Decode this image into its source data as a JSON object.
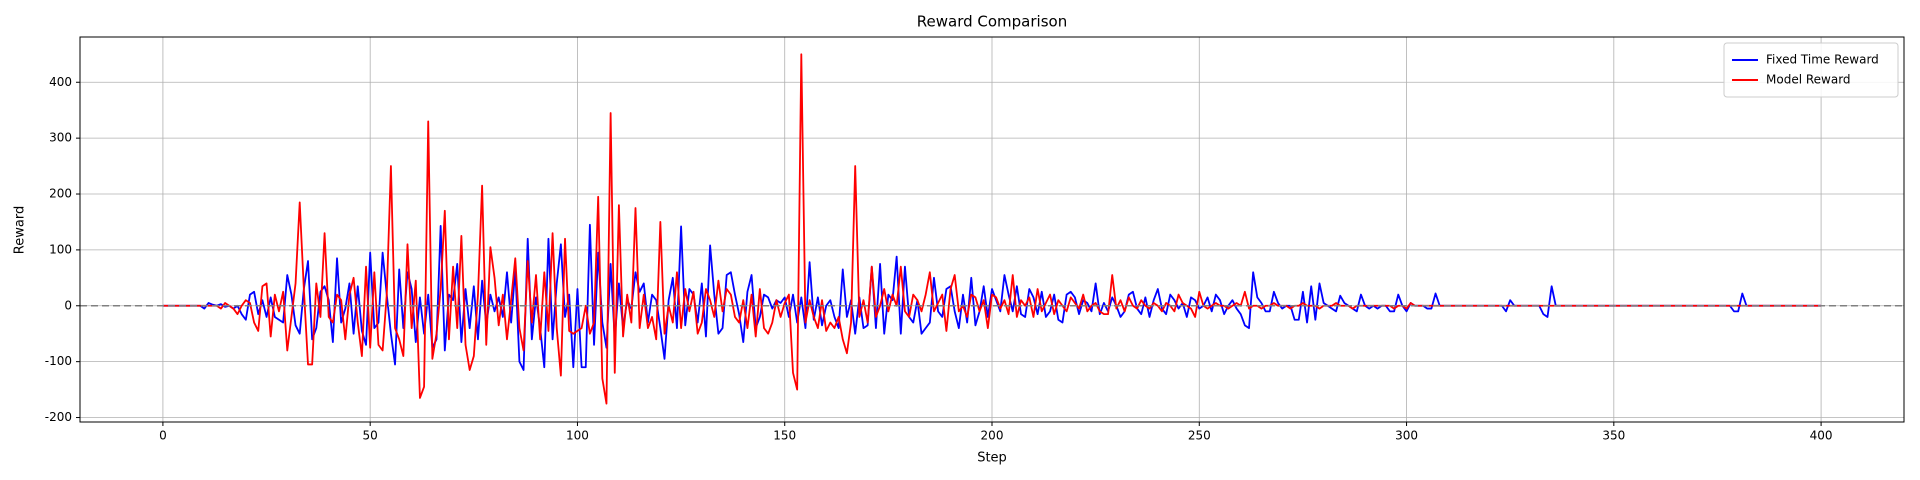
{
  "chart_data": {
    "type": "line",
    "title": "Reward Comparison",
    "x_label": "Step",
    "y_label": "Reward",
    "x": [
      0,
      1,
      2,
      3,
      4,
      5,
      6,
      7,
      8,
      9,
      10,
      11,
      12,
      13,
      14,
      15,
      16,
      17,
      18,
      19,
      20,
      21,
      22,
      23,
      24,
      25,
      26,
      27,
      28,
      29,
      30,
      31,
      32,
      33,
      34,
      35,
      36,
      37,
      38,
      39,
      40,
      41,
      42,
      43,
      44,
      45,
      46,
      47,
      48,
      49,
      50,
      51,
      52,
      53,
      54,
      55,
      56,
      57,
      58,
      59,
      60,
      61,
      62,
      63,
      64,
      65,
      66,
      67,
      68,
      69,
      70,
      71,
      72,
      73,
      74,
      75,
      76,
      77,
      78,
      79,
      80,
      81,
      82,
      83,
      84,
      85,
      86,
      87,
      88,
      89,
      90,
      91,
      92,
      93,
      94,
      95,
      96,
      97,
      98,
      99,
      100,
      101,
      102,
      103,
      104,
      105,
      106,
      107,
      108,
      109,
      110,
      111,
      112,
      113,
      114,
      115,
      116,
      117,
      118,
      119,
      120,
      121,
      122,
      123,
      124,
      125,
      126,
      127,
      128,
      129,
      130,
      131,
      132,
      133,
      134,
      135,
      136,
      137,
      138,
      139,
      140,
      141,
      142,
      143,
      144,
      145,
      146,
      147,
      148,
      149,
      150,
      151,
      152,
      153,
      154,
      155,
      156,
      157,
      158,
      159,
      160,
      161,
      162,
      163,
      164,
      165,
      166,
      167,
      168,
      169,
      170,
      171,
      172,
      173,
      174,
      175,
      176,
      177,
      178,
      179,
      180,
      181,
      182,
      183,
      184,
      185,
      186,
      187,
      188,
      189,
      190,
      191,
      192,
      193,
      194,
      195,
      196,
      197,
      198,
      199,
      200,
      201,
      202,
      203,
      204,
      205,
      206,
      207,
      208,
      209,
      210,
      211,
      212,
      213,
      214,
      215,
      216,
      217,
      218,
      219,
      220,
      221,
      222,
      223,
      224,
      225,
      226,
      227,
      228,
      229,
      230,
      231,
      232,
      233,
      234,
      235,
      236,
      237,
      238,
      239,
      240,
      241,
      242,
      243,
      244,
      245,
      246,
      247,
      248,
      249,
      250,
      251,
      252,
      253,
      254,
      255,
      256,
      257,
      258,
      259,
      260,
      261,
      262,
      263,
      264,
      265,
      266,
      267,
      268,
      269,
      270,
      271,
      272,
      273,
      274,
      275,
      276,
      277,
      278,
      279,
      280,
      281,
      282,
      283,
      284,
      285,
      286,
      287,
      288,
      289,
      290,
      291,
      292,
      293,
      294,
      295,
      296,
      297,
      298,
      299,
      300,
      301,
      302,
      303,
      304,
      305,
      306,
      307,
      308,
      309,
      310,
      311,
      312,
      313,
      314,
      315,
      316,
      317,
      318,
      319,
      320,
      321,
      322,
      323,
      324,
      325,
      326,
      327,
      328,
      329,
      330,
      331,
      332,
      333,
      334,
      335,
      336,
      337,
      338,
      339,
      340,
      341,
      342,
      343,
      344,
      345,
      346,
      347,
      348,
      349,
      350,
      351,
      352,
      353,
      354,
      355,
      356,
      357,
      358,
      359,
      360,
      361,
      362,
      363,
      364,
      365,
      366,
      367,
      368,
      369,
      370,
      371,
      372,
      373,
      374,
      375,
      376,
      377,
      378,
      379,
      380,
      381,
      382,
      383,
      384,
      385,
      386,
      387,
      388,
      389,
      390,
      391,
      392,
      393,
      394,
      395,
      396,
      397,
      398,
      399,
      400
    ],
    "series": [
      {
        "name": "Fixed Time Reward",
        "color": "#0000ff",
        "values": [
          0,
          0,
          0,
          0,
          0,
          0,
          0,
          0,
          0,
          0,
          -5,
          5,
          2,
          0,
          3,
          -2,
          0,
          -5,
          0,
          -15,
          -25,
          20,
          25,
          -15,
          10,
          -20,
          15,
          -20,
          -25,
          -30,
          55,
          20,
          -35,
          -50,
          30,
          80,
          -60,
          -40,
          25,
          35,
          10,
          -65,
          85,
          -30,
          -5,
          40,
          -50,
          35,
          -45,
          -70,
          95,
          -40,
          -30,
          95,
          20,
          -50,
          -105,
          65,
          -40,
          60,
          30,
          -65,
          15,
          -50,
          20,
          -75,
          -60,
          143,
          -80,
          20,
          10,
          75,
          -65,
          30,
          -40,
          35,
          -60,
          45,
          -35,
          20,
          -10,
          15,
          -20,
          60,
          -30,
          65,
          -100,
          -115,
          120,
          -60,
          15,
          -40,
          -110,
          120,
          -60,
          40,
          110,
          -20,
          20,
          -110,
          30,
          -110,
          -110,
          145,
          -70,
          95,
          -30,
          -75,
          75,
          -60,
          40,
          -40,
          10,
          -5,
          60,
          25,
          40,
          -30,
          20,
          10,
          -40,
          -95,
          10,
          50,
          -40,
          142,
          -35,
          30,
          20,
          -30,
          40,
          -55,
          108,
          20,
          -50,
          -40,
          55,
          60,
          20,
          -15,
          -65,
          25,
          55,
          -40,
          -20,
          20,
          15,
          -5,
          10,
          5,
          15,
          -20,
          20,
          -30,
          15,
          -40,
          78,
          -25,
          15,
          -35,
          0,
          10,
          -20,
          -40,
          65,
          -20,
          10,
          -50,
          15,
          -40,
          -35,
          70,
          -40,
          75,
          -50,
          20,
          10,
          88,
          -50,
          70,
          -20,
          -30,
          10,
          -50,
          -40,
          -30,
          50,
          -10,
          -20,
          30,
          35,
          -10,
          -40,
          20,
          -30,
          50,
          -35,
          -10,
          35,
          -20,
          30,
          10,
          -10,
          55,
          20,
          -10,
          35,
          -15,
          -20,
          30,
          15,
          -15,
          25,
          -20,
          -10,
          20,
          -25,
          -30,
          20,
          25,
          15,
          -15,
          10,
          5,
          -10,
          40,
          -15,
          5,
          -10,
          15,
          0,
          -20,
          -10,
          20,
          25,
          -5,
          -15,
          15,
          -20,
          10,
          30,
          -5,
          -15,
          20,
          10,
          -5,
          5,
          -20,
          15,
          10,
          -5,
          0,
          15,
          -10,
          20,
          10,
          -15,
          0,
          10,
          -5,
          -15,
          -35,
          -40,
          60,
          15,
          5,
          -10,
          -10,
          25,
          5,
          -5,
          0,
          0,
          -25,
          -25,
          25,
          -30,
          35,
          -25,
          40,
          5,
          0,
          -5,
          -10,
          18,
          5,
          0,
          -5,
          -10,
          20,
          0,
          -5,
          0,
          -5,
          0,
          0,
          -10,
          -10,
          20,
          0,
          -10,
          5,
          0,
          0,
          0,
          -5,
          -5,
          22,
          0,
          0,
          0,
          0,
          0,
          0,
          0,
          0,
          0,
          0,
          0,
          0,
          0,
          0,
          0,
          0,
          -10,
          10,
          0,
          0,
          0,
          0,
          0,
          0,
          0,
          -15,
          -20,
          35,
          0,
          0,
          0,
          0,
          0,
          0,
          0,
          0,
          0,
          0,
          0,
          0,
          0,
          0,
          0,
          0,
          0,
          0,
          0,
          0,
          0,
          0,
          0,
          0,
          0,
          0,
          0,
          0,
          0,
          0,
          0,
          0,
          0,
          0,
          0,
          0,
          0,
          0,
          0,
          0,
          0,
          0,
          0,
          -10,
          -10,
          22,
          0,
          0,
          0,
          0,
          0,
          0,
          0,
          0,
          0,
          0,
          0,
          0,
          0,
          0,
          0,
          0,
          0,
          0,
          0
        ]
      },
      {
        "name": "Model Reward",
        "color": "#ff0000",
        "values": [
          0,
          0,
          0,
          0,
          0,
          0,
          0,
          0,
          0,
          0,
          0,
          0,
          0,
          0,
          -5,
          5,
          0,
          -5,
          -15,
          0,
          10,
          5,
          -30,
          -45,
          35,
          40,
          -55,
          20,
          -10,
          25,
          -80,
          -20,
          40,
          185,
          30,
          -105,
          -105,
          40,
          -20,
          130,
          -20,
          -30,
          20,
          10,
          -60,
          20,
          50,
          -30,
          -90,
          70,
          -75,
          60,
          -70,
          -80,
          20,
          250,
          -40,
          -60,
          -90,
          110,
          -40,
          45,
          -165,
          -145,
          330,
          -95,
          -50,
          30,
          170,
          -60,
          70,
          -40,
          125,
          -70,
          -115,
          -90,
          20,
          215,
          -70,
          105,
          50,
          -35,
          20,
          -60,
          10,
          85,
          -40,
          -80,
          80,
          -30,
          55,
          -60,
          60,
          -45,
          130,
          -40,
          -125,
          120,
          -45,
          -50,
          -45,
          -40,
          0,
          -50,
          -30,
          195,
          -130,
          -175,
          345,
          -120,
          180,
          -55,
          20,
          -30,
          175,
          -40,
          20,
          -40,
          -20,
          -60,
          150,
          -50,
          0,
          -30,
          60,
          -40,
          30,
          -10,
          25,
          -50,
          -30,
          30,
          10,
          -20,
          45,
          -10,
          30,
          20,
          -20,
          -30,
          10,
          -40,
          20,
          -55,
          30,
          -40,
          -50,
          -30,
          10,
          -20,
          5,
          20,
          -120,
          -150,
          450,
          -30,
          10,
          -20,
          -40,
          10,
          -45,
          -30,
          -40,
          -20,
          -60,
          -85,
          -30,
          250,
          -20,
          10,
          -30,
          70,
          -20,
          0,
          30,
          -10,
          20,
          0,
          70,
          -10,
          -20,
          20,
          10,
          -10,
          20,
          60,
          -10,
          5,
          20,
          -45,
          30,
          55,
          -10,
          0,
          -20,
          20,
          15,
          -10,
          10,
          -40,
          20,
          15,
          -5,
          10,
          -15,
          55,
          -20,
          10,
          0,
          15,
          -20,
          30,
          -10,
          5,
          20,
          -15,
          10,
          0,
          -10,
          15,
          5,
          -5,
          20,
          -10,
          0,
          5,
          -10,
          -15,
          -15,
          55,
          -5,
          10,
          -10,
          15,
          0,
          -5,
          10,
          0,
          -5,
          5,
          0,
          -10,
          5,
          0,
          -10,
          20,
          5,
          0,
          -5,
          -20,
          25,
          0,
          -5,
          0,
          5,
          0,
          0,
          -5,
          0,
          5,
          0,
          25,
          -5,
          0,
          0,
          -5,
          0,
          0,
          5,
          0,
          0,
          0,
          -5,
          0,
          0,
          5,
          0,
          0,
          0,
          -5,
          0,
          0,
          0,
          5,
          0,
          0,
          0,
          -5,
          0,
          0,
          0,
          0,
          0,
          0,
          0,
          0,
          0,
          -5,
          0,
          0,
          -5,
          5,
          0,
          0,
          0,
          0,
          0,
          0,
          0,
          0,
          0,
          0,
          0,
          0,
          0,
          0,
          0,
          0,
          0,
          0,
          0,
          0,
          0,
          0,
          0,
          0,
          0,
          0,
          0,
          0,
          0,
          0,
          0,
          0,
          0,
          0,
          0,
          0,
          0,
          0,
          0,
          0,
          0,
          0,
          0,
          0,
          0,
          0,
          0,
          0,
          0,
          0,
          0,
          0,
          0,
          0,
          0,
          0,
          0,
          0,
          0,
          0,
          0,
          0,
          0,
          0,
          0,
          0,
          0,
          0,
          0,
          0,
          0,
          0,
          0,
          0,
          0,
          0,
          0,
          0,
          0,
          0,
          0,
          0,
          0,
          0,
          0,
          0,
          0,
          0,
          0,
          0,
          0,
          0,
          0,
          0,
          0,
          0,
          0,
          0,
          0
        ]
      }
    ],
    "xlim": [
      -20,
      420
    ],
    "ylim": [
      -208,
      481
    ],
    "xticks": [
      0,
      50,
      100,
      150,
      200,
      250,
      300,
      350,
      400
    ],
    "yticks": [
      -200,
      -100,
      0,
      100,
      200,
      300,
      400
    ],
    "grid": true,
    "hline": 0,
    "legend": "upper right"
  }
}
